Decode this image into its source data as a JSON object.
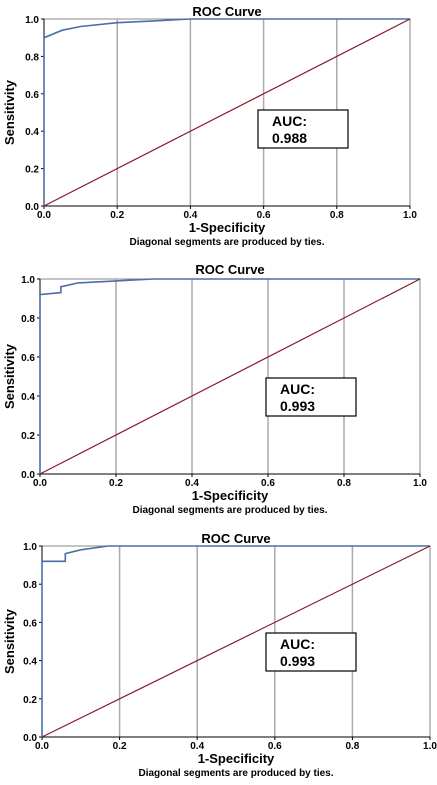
{
  "chart_data": [
    {
      "type": "line",
      "title": "ROC Curve",
      "xlabel": "1-Specificity",
      "ylabel": "Sensitivity",
      "note": "Diagonal segments are produced by ties.",
      "xlim": [
        0,
        1
      ],
      "ylim": [
        0,
        1
      ],
      "x_ticks": [
        "0.0",
        "0.2",
        "0.4",
        "0.6",
        "0.8",
        "1.0"
      ],
      "y_ticks": [
        "0.0",
        "0.2",
        "0.4",
        "0.6",
        "0.8",
        "1.0"
      ],
      "grid": "vertical",
      "annotation": {
        "label": "AUC:",
        "value": "0.988"
      },
      "series": [
        {
          "color": "#4a6fa5",
          "x": [
            0,
            0,
            0,
            0.05,
            0.1,
            0.2,
            0.3,
            0.4,
            1.0
          ],
          "y": [
            0,
            0.9,
            0.9,
            0.94,
            0.96,
            0.98,
            0.99,
            1.0,
            1.0
          ]
        },
        {
          "color": "#8b1a2b",
          "x": [
            0,
            1
          ],
          "y": [
            0,
            1
          ]
        }
      ]
    },
    {
      "type": "line",
      "title": "ROC Curve",
      "xlabel": "1-Specificity",
      "ylabel": "Sensitivity",
      "note": "Diagonal segments are produced by ties.",
      "xlim": [
        0,
        1
      ],
      "ylim": [
        0,
        1
      ],
      "x_ticks": [
        "0.0",
        "0.2",
        "0.4",
        "0.6",
        "0.8",
        "1.0"
      ],
      "y_ticks": [
        "0.0",
        "0.2",
        "0.4",
        "0.6",
        "0.8",
        "1.0"
      ],
      "grid": "vertical",
      "annotation": {
        "label": "AUC:",
        "value": "0.993"
      },
      "series": [
        {
          "color": "#4a6fa5",
          "x": [
            0,
            0,
            0,
            0.055,
            0.055,
            0.1,
            0.2,
            0.3,
            1.0
          ],
          "y": [
            0,
            0.92,
            0.92,
            0.93,
            0.96,
            0.98,
            0.99,
            1.0,
            1.0
          ]
        },
        {
          "color": "#8b1a2b",
          "x": [
            0,
            1
          ],
          "y": [
            0,
            1
          ]
        }
      ]
    },
    {
      "type": "line",
      "title": "ROC Curve",
      "xlabel": "1-Specificity",
      "ylabel": "Sensitivity",
      "note": "Diagonal segments are produced by ties.",
      "xlim": [
        0,
        1
      ],
      "ylim": [
        0,
        1
      ],
      "x_ticks": [
        "0.0",
        "0.2",
        "0.4",
        "0.6",
        "0.8",
        "1.0"
      ],
      "y_ticks": [
        "0.0",
        "0.2",
        "0.4",
        "0.6",
        "0.8",
        "1.0"
      ],
      "grid": "vertical",
      "annotation": {
        "label": "AUC:",
        "value": "0.993"
      },
      "series": [
        {
          "color": "#4a6fa5",
          "x": [
            0,
            0,
            0.06,
            0.06,
            0.1,
            0.17,
            1.0
          ],
          "y": [
            0,
            0.92,
            0.92,
            0.96,
            0.98,
            1.0,
            1.0
          ]
        },
        {
          "color": "#8b1a2b",
          "x": [
            0,
            1
          ],
          "y": [
            0,
            1
          ]
        }
      ]
    }
  ]
}
